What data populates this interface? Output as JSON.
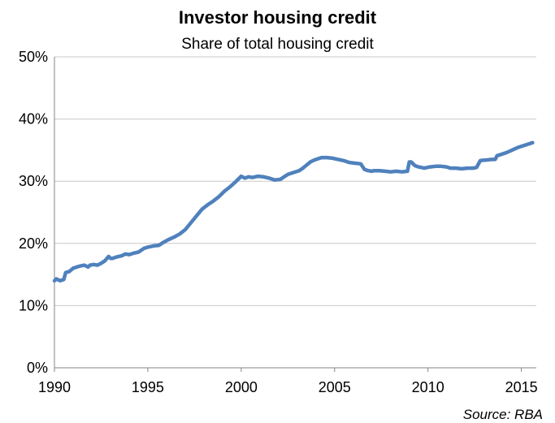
{
  "chart_data": {
    "type": "line",
    "title": "Investor housing credit",
    "subtitle": "Share of total housing credit",
    "xlabel": "",
    "ylabel": "",
    "source": "Source: RBA",
    "xlim": [
      1990,
      2015.8
    ],
    "ylim": [
      0,
      50
    ],
    "y_ticks": [
      0,
      10,
      20,
      30,
      40,
      50
    ],
    "y_tick_labels": [
      "0%",
      "10%",
      "20%",
      "30%",
      "40%",
      "50%"
    ],
    "x_ticks": [
      1990,
      1995,
      2000,
      2005,
      2010,
      2015
    ],
    "x_tick_labels": [
      "1990",
      "1995",
      "2000",
      "2005",
      "2010",
      "2015"
    ],
    "grid": true,
    "legend": "none",
    "colors": {
      "line": "#4f81bd",
      "grid": "#c8c8c8",
      "axis": "#868686"
    },
    "series": [
      {
        "x": [
          1990.0,
          1990.1,
          1990.3,
          1990.5,
          1990.6,
          1990.8,
          1991.0,
          1991.3,
          1991.6,
          1991.8,
          1991.9,
          1992.1,
          1992.3,
          1992.5,
          1992.7,
          1992.9,
          1993.0,
          1993.1,
          1993.3,
          1993.6,
          1993.8,
          1994.0,
          1994.2,
          1994.5,
          1994.8,
          1995.0,
          1995.3,
          1995.6,
          1995.8,
          1996.1,
          1996.4,
          1996.7,
          1997.0,
          1997.3,
          1997.6,
          1997.9,
          1998.2,
          1998.5,
          1998.8,
          1999.1,
          1999.4,
          1999.7,
          2000.0,
          2000.2,
          2000.4,
          2000.6,
          2000.9,
          2001.2,
          2001.5,
          2001.8,
          2002.1,
          2002.3,
          2002.5,
          2002.8,
          2003.1,
          2003.3,
          2003.5,
          2003.7,
          2003.9,
          2004.1,
          2004.3,
          2004.6,
          2004.9,
          2005.2,
          2005.5,
          2005.8,
          2006.1,
          2006.4,
          2006.6,
          2006.8,
          2007.0,
          2007.1,
          2007.4,
          2007.7,
          2008.0,
          2008.3,
          2008.6,
          2008.9,
          2009.0,
          2009.1,
          2009.3,
          2009.5,
          2009.8,
          2010.1,
          2010.4,
          2010.7,
          2011.0,
          2011.2,
          2011.5,
          2011.8,
          2012.1,
          2012.4,
          2012.6,
          2012.8,
          2013.0,
          2013.1,
          2013.4,
          2013.6,
          2013.7,
          2013.9,
          2014.2,
          2014.5,
          2014.8,
          2015.1,
          2015.4,
          2015.6
        ],
        "y": [
          14.0,
          14.3,
          14.0,
          14.2,
          15.3,
          15.5,
          16.0,
          16.3,
          16.5,
          16.2,
          16.5,
          16.6,
          16.5,
          16.8,
          17.2,
          17.9,
          17.6,
          17.6,
          17.8,
          18.0,
          18.3,
          18.2,
          18.4,
          18.6,
          19.2,
          19.4,
          19.6,
          19.7,
          20.1,
          20.6,
          21.0,
          21.5,
          22.2,
          23.3,
          24.4,
          25.5,
          26.2,
          26.8,
          27.5,
          28.4,
          29.1,
          29.9,
          30.8,
          30.5,
          30.7,
          30.6,
          30.8,
          30.7,
          30.5,
          30.2,
          30.3,
          30.7,
          31.1,
          31.4,
          31.7,
          32.1,
          32.6,
          33.1,
          33.4,
          33.6,
          33.8,
          33.8,
          33.7,
          33.5,
          33.3,
          33.0,
          32.9,
          32.8,
          31.9,
          31.7,
          31.6,
          31.7,
          31.7,
          31.6,
          31.5,
          31.6,
          31.5,
          31.6,
          33.1,
          33.1,
          32.5,
          32.3,
          32.1,
          32.3,
          32.4,
          32.4,
          32.3,
          32.1,
          32.1,
          32.0,
          32.1,
          32.1,
          32.2,
          33.3,
          33.4,
          33.4,
          33.5,
          33.5,
          34.1,
          34.3,
          34.6,
          35.0,
          35.4,
          35.7,
          36.0,
          36.2
        ]
      }
    ]
  }
}
